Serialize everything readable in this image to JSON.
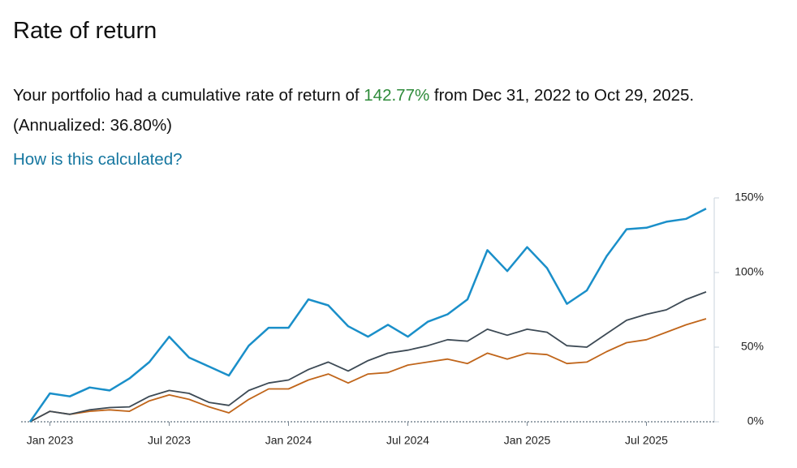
{
  "header": {
    "title": "Rate of return"
  },
  "summary": {
    "prefix": "Your portfolio had a cumulative rate of return of ",
    "rate": "142.77%",
    "suffix": " from Dec 31, 2022 to Oct 29, 2025. (Annualized: 36.80%)"
  },
  "link": "How is this calculated?",
  "chart_data": {
    "type": "line",
    "x": [
      "2022-12",
      "2023-01",
      "2023-02",
      "2023-03",
      "2023-04",
      "2023-05",
      "2023-06",
      "2023-07",
      "2023-08",
      "2023-09",
      "2023-10",
      "2023-11",
      "2023-12",
      "2024-01",
      "2024-02",
      "2024-03",
      "2024-04",
      "2024-05",
      "2024-06",
      "2024-07",
      "2024-08",
      "2024-09",
      "2024-10",
      "2024-11",
      "2024-12",
      "2025-01",
      "2025-02",
      "2025-03",
      "2025-04",
      "2025-05",
      "2025-06",
      "2025-07",
      "2025-08",
      "2025-09",
      "2025-10"
    ],
    "series": [
      {
        "color": "#1a8fc9",
        "values": [
          0,
          19,
          17,
          23,
          21,
          29,
          40,
          57,
          43,
          37,
          31,
          51,
          63,
          63,
          82,
          78,
          64,
          57,
          65,
          57,
          67,
          72,
          82,
          115,
          101,
          117,
          103,
          79,
          88,
          111,
          129,
          130,
          134,
          136,
          142.77
        ]
      },
      {
        "color": "#3d4a55",
        "values": [
          0,
          7,
          5,
          8,
          9.5,
          10,
          17,
          21,
          19,
          13,
          11,
          21,
          26,
          28,
          35,
          40,
          34,
          41,
          46,
          48,
          51,
          55,
          54,
          62,
          58,
          62,
          60,
          51,
          50,
          59,
          68,
          72,
          75,
          82,
          87
        ]
      },
      {
        "color": "#c0651a",
        "values": [
          0,
          7,
          5,
          7,
          8,
          7,
          14,
          18,
          15,
          10,
          6,
          15,
          22,
          22,
          28,
          32,
          26,
          32,
          33,
          38,
          40,
          42,
          39,
          46,
          42,
          46,
          45,
          39,
          40,
          47,
          53,
          55,
          60,
          65,
          69
        ]
      }
    ],
    "xticks": [
      {
        "value": "2023-01",
        "label": "Jan 2023"
      },
      {
        "value": "2023-07",
        "label": "Jul 2023"
      },
      {
        "value": "2024-01",
        "label": "Jan 2024"
      },
      {
        "value": "2024-07",
        "label": "Jul 2024"
      },
      {
        "value": "2025-01",
        "label": "Jan 2025"
      },
      {
        "value": "2025-07",
        "label": "Jul 2025"
      }
    ],
    "ylim": [
      0,
      150
    ],
    "yticks": [
      {
        "value": 0,
        "label": "0%"
      },
      {
        "value": 50,
        "label": "50%"
      },
      {
        "value": 100,
        "label": "100%"
      },
      {
        "value": 150,
        "label": "150%"
      }
    ]
  }
}
